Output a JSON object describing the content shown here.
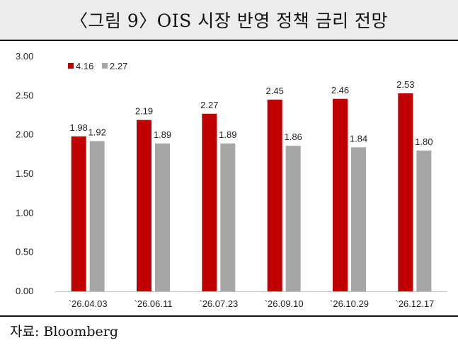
{
  "title": "〈그림 9〉OIS 시장 반영 정책 금리 전망",
  "source": "자료: Bloomberg",
  "colors": {
    "series1": "#c00000",
    "series2": "#a6a6a6"
  },
  "chart_data": {
    "type": "bar",
    "categories": [
      "`26.04.03",
      "`26.06.11",
      "`26.07.23",
      "`26.09.10",
      "`26.10.29",
      "`26.12.17"
    ],
    "series": [
      {
        "name": "4.16",
        "values": [
          1.98,
          2.19,
          2.27,
          2.45,
          2.46,
          2.53
        ]
      },
      {
        "name": "2.27",
        "values": [
          1.92,
          1.89,
          1.89,
          1.86,
          1.84,
          1.8
        ]
      }
    ],
    "ylim": [
      0,
      3
    ],
    "yticks": [
      "0.00",
      "0.50",
      "1.00",
      "1.50",
      "2.00",
      "2.50",
      "3.00"
    ],
    "grid": false,
    "legend": "top-left"
  }
}
